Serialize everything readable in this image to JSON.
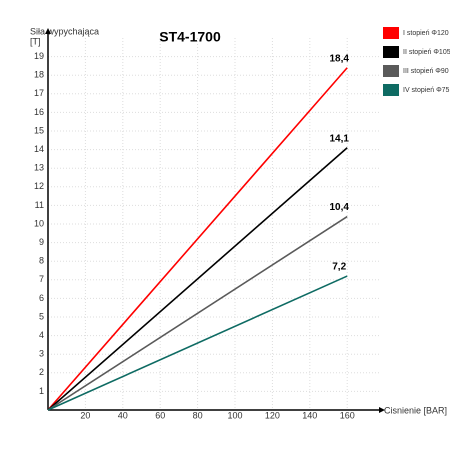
{
  "chart_data": {
    "type": "line",
    "title": "ST4-1700",
    "y_label": [
      "Siła wypychająca",
      "[T]"
    ],
    "x_label": "Cisnienie [BAR]",
    "x": [
      0,
      160
    ],
    "series": [
      {
        "name": "I stopień Φ120",
        "color": "#ff0000",
        "values": [
          0,
          18.4
        ],
        "value_labels": [
          null,
          "18,4"
        ]
      },
      {
        "name": "II stopień Φ105",
        "color": "#000000",
        "values": [
          0,
          14.1
        ],
        "value_labels": [
          null,
          "14,1"
        ]
      },
      {
        "name": "III stopień Φ90",
        "color": "#5a5a5a",
        "values": [
          0,
          10.4
        ],
        "value_labels": [
          null,
          "10,4"
        ]
      },
      {
        "name": "IV stopień Φ75",
        "color": "#0e6b63",
        "values": [
          0,
          7.2
        ],
        "value_labels": [
          null,
          "7,2"
        ]
      }
    ],
    "xlim": [
      0,
      177
    ],
    "ylim": [
      0,
      20
    ],
    "xticks": [
      20,
      40,
      60,
      80,
      100,
      120,
      140,
      160
    ],
    "yticks": [
      1,
      2,
      3,
      4,
      5,
      6,
      7,
      8,
      9,
      10,
      11,
      12,
      13,
      14,
      15,
      16,
      17,
      18,
      19
    ],
    "grid": true
  }
}
